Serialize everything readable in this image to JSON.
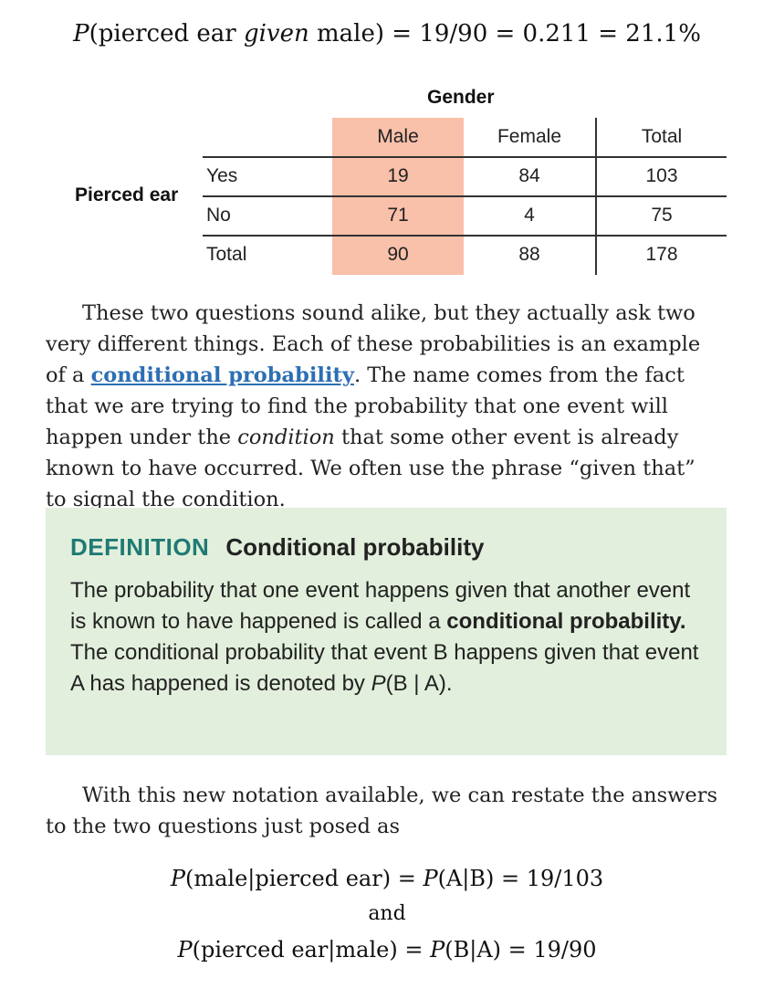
{
  "equation_top": {
    "p": "P",
    "open": "(pierced ear ",
    "given": "given",
    "rest": " male) = 19/90 = 0.211 = 21.1%"
  },
  "table": {
    "column_group_label": "Gender",
    "row_group_label": "Pierced ear",
    "columns": [
      "Male",
      "Female",
      "Total"
    ],
    "rows": [
      {
        "label": "Yes",
        "male": "19",
        "female": "84",
        "total": "103"
      },
      {
        "label": "No",
        "male": "71",
        "female": "4",
        "total": "75"
      },
      {
        "label": "Total",
        "male": "90",
        "female": "88",
        "total": "178"
      }
    ],
    "highlight_color": "#f9c0aa"
  },
  "paragraph1": {
    "part1": "These two questions sound alike, but they actually ask two very different things. Each of these probabilities is an example of a ",
    "link": "conditional probability",
    "part2": ". The name comes from the fact that we are trying to find the probability that one event will happen under the ",
    "condition_word": "condition",
    "part3": " that some other event is already known to have occurred. We often use the phrase “given that” to signal the condition."
  },
  "definition": {
    "keyword": "DEFINITION",
    "title": "Conditional probability",
    "body1": "The probability that one event happens given that another event is known to have happened is called a ",
    "bold_term": "conditional probability.",
    "body2": " The conditional probability that event B happens given that event A has happened is denoted by ",
    "notation_p": "P",
    "notation_rest": "(B | A).",
    "background_color": "#e2efdc",
    "keyword_color": "#1f7a74"
  },
  "paragraph2": "With this new notation available, we can restate the answers to the two questions just posed as",
  "equations": {
    "eq1_p1": "P",
    "eq1_a": "(male|pierced ear) = ",
    "eq1_p2": "P",
    "eq1_b": "(A|B) = 19/103",
    "and": "and",
    "eq2_p1": "P",
    "eq2_a": "(pierced ear|male) = ",
    "eq2_p2": "P",
    "eq2_b": "(B|A) = 19/90"
  },
  "link_color": "#2d6fb3"
}
